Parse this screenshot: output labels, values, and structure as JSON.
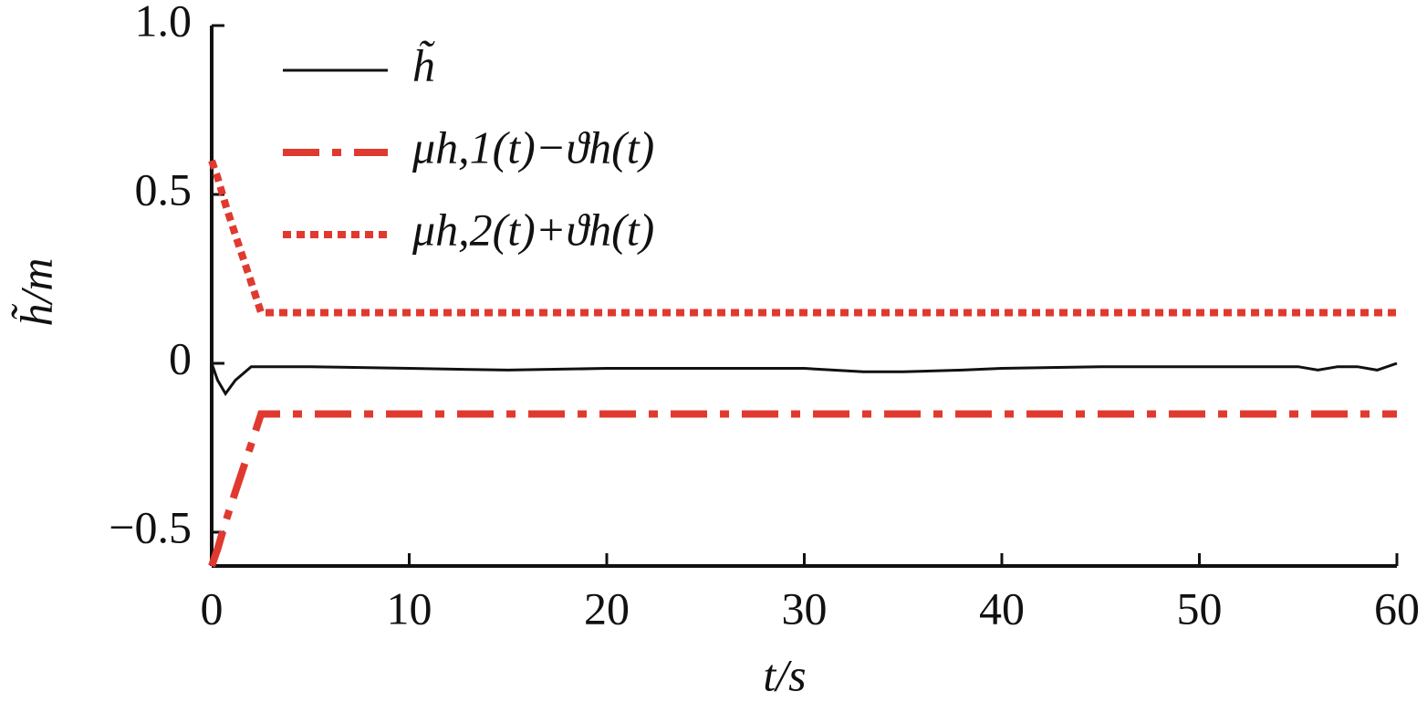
{
  "chart_data": {
    "type": "line",
    "x_label": "t/s",
    "y_label": "h̃/m",
    "x": [
      0,
      0.3,
      0.7,
      1.2,
      2,
      2.5,
      5,
      10,
      15,
      20,
      25,
      30,
      33,
      35,
      38,
      40,
      45,
      50,
      55,
      56,
      57,
      58,
      59,
      60
    ],
    "series": [
      {
        "name": "h̃",
        "color": "#111111",
        "style": "solid",
        "values": [
          0,
          -0.05,
          -0.09,
          -0.05,
          -0.01,
          -0.01,
          -0.01,
          -0.015,
          -0.02,
          -0.015,
          -0.015,
          -0.015,
          -0.025,
          -0.025,
          -0.02,
          -0.015,
          -0.01,
          -0.01,
          -0.01,
          -0.02,
          -0.01,
          -0.01,
          -0.02,
          0
        ]
      },
      {
        "name": "μh,1(t)−ϑh(t)",
        "color": "#e0392f",
        "style": "dashdot",
        "values": [
          -0.6,
          -0.55,
          -0.47,
          -0.38,
          -0.24,
          -0.15,
          -0.15,
          -0.15,
          -0.15,
          -0.15,
          -0.15,
          -0.15,
          -0.15,
          -0.15,
          -0.15,
          -0.15,
          -0.15,
          -0.15,
          -0.15,
          -0.15,
          -0.15,
          -0.15,
          -0.15,
          -0.15
        ]
      },
      {
        "name": "μh,2(t)+ϑh(t)",
        "color": "#e0392f",
        "style": "dotted",
        "values": [
          0.6,
          0.55,
          0.47,
          0.38,
          0.24,
          0.15,
          0.15,
          0.15,
          0.15,
          0.15,
          0.15,
          0.15,
          0.15,
          0.15,
          0.15,
          0.15,
          0.15,
          0.15,
          0.15,
          0.15,
          0.15,
          0.15,
          0.15,
          0.15
        ]
      }
    ],
    "xlim": [
      0,
      60
    ],
    "xticks": [
      0,
      10,
      20,
      30,
      40,
      50,
      60
    ],
    "ylim": [
      -0.6,
      1.0
    ],
    "yticks": [
      {
        "value": -0.5,
        "label": "−0.5"
      },
      0,
      0.5,
      {
        "value": 1.0,
        "label": "1.0"
      }
    ],
    "legend": "upper left"
  }
}
